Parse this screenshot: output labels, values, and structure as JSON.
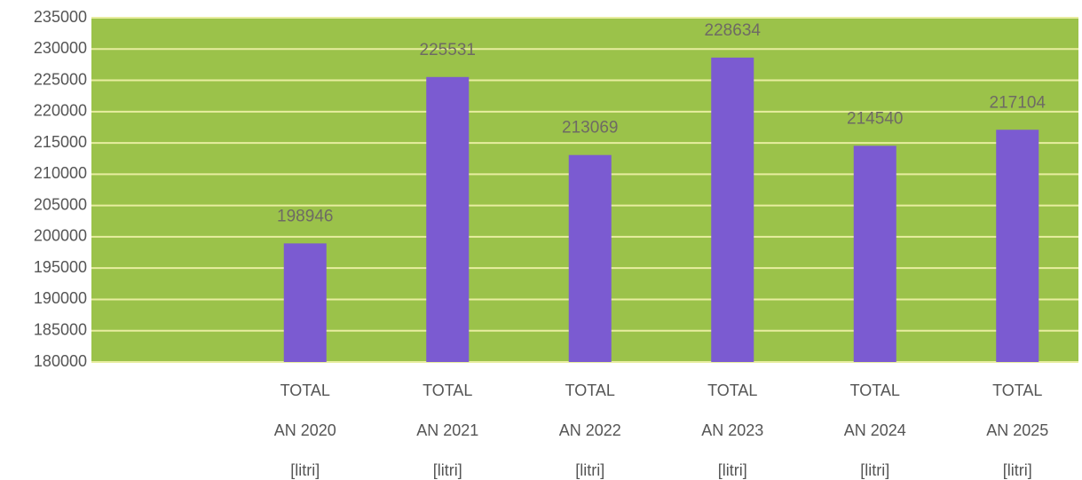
{
  "chart_data": {
    "type": "bar",
    "categories": [
      null,
      "TOTAL\nAN 2020\n[litri]",
      "TOTAL\nAN 2021\n[litri]",
      "TOTAL\nAN 2022\n[litri]",
      "TOTAL\nAN 2023\n[litri]",
      "TOTAL\nAN 2024\n[litri]",
      "TOTAL\nAN 2025\n[litri]"
    ],
    "values": [
      null,
      198946,
      225531,
      213069,
      228634,
      214540,
      217104
    ],
    "color": "#7b5bd1",
    "background": "#9bc24a",
    "ylim": [
      180000,
      235000
    ],
    "yticks": [
      180000,
      185000,
      190000,
      195000,
      200000,
      205000,
      210000,
      215000,
      220000,
      225000,
      230000,
      235000
    ],
    "grid": true
  }
}
